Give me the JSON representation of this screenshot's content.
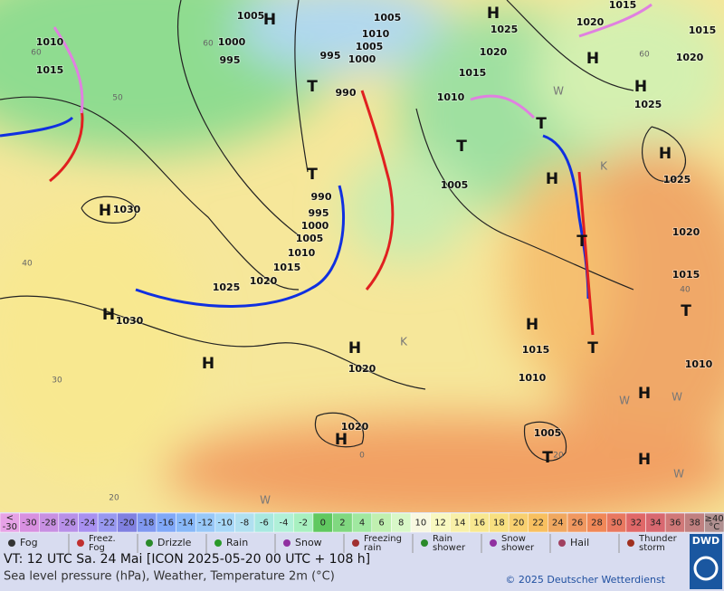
{
  "map": {
    "pressure_labels": [
      "1005",
      "1005",
      "1010",
      "1000",
      "995",
      "1010",
      "1005",
      "995",
      "1000",
      "990",
      "1015",
      "1025",
      "1020",
      "1015",
      "1010",
      "1020",
      "1015",
      "1015",
      "1020",
      "1025",
      "1025",
      "1005",
      "990",
      "995",
      "1000",
      "1005",
      "1010",
      "1015",
      "1020",
      "1025",
      "1030",
      "1030",
      "1020",
      "1015",
      "1010",
      "1020",
      "1005",
      "1020",
      "1015",
      "1010"
    ],
    "isotherm_labels": [
      "60",
      "60",
      "50",
      "40",
      "30",
      "20",
      "40",
      "0",
      "20",
      "60"
    ],
    "centers": [
      "H",
      "H",
      "T",
      "T",
      "H",
      "H",
      "H",
      "H",
      "H",
      "H",
      "T",
      "T",
      "H",
      "T",
      "T",
      "H",
      "H",
      "H",
      "H",
      "T",
      "T",
      "H"
    ],
    "airmass_labels": [
      "W",
      "K",
      "K",
      "W",
      "W",
      "W",
      "W"
    ]
  },
  "scale": {
    "unit": "°C",
    "cells": [
      {
        "label": "-30",
        "prefix": "<",
        "color": "#e6a2e6"
      },
      {
        "label": "-30",
        "color": "#d890e0"
      },
      {
        "label": "-28",
        "color": "#c890e2"
      },
      {
        "label": "-26",
        "color": "#b890e8"
      },
      {
        "label": "-24",
        "color": "#a890f0"
      },
      {
        "label": "-22",
        "color": "#9898f0"
      },
      {
        "label": "-20",
        "color": "#8080e0"
      },
      {
        "label": "-18",
        "color": "#8098f0"
      },
      {
        "label": "-16",
        "color": "#80a8f8"
      },
      {
        "label": "-14",
        "color": "#88b8f8"
      },
      {
        "label": "-12",
        "color": "#98c8f8"
      },
      {
        "label": "-10",
        "color": "#a8d8f8"
      },
      {
        "label": "-8",
        "color": "#b0e0f0"
      },
      {
        "label": "-6",
        "color": "#a8e8e0"
      },
      {
        "label": "-4",
        "color": "#b0f0d8"
      },
      {
        "label": "-2",
        "color": "#a8f0c0"
      },
      {
        "label": "0",
        "color": "#60c860"
      },
      {
        "label": "2",
        "color": "#80d880"
      },
      {
        "label": "4",
        "color": "#a0e8a0"
      },
      {
        "label": "6",
        "color": "#c0f0b0"
      },
      {
        "label": "8",
        "color": "#d8f8c8"
      },
      {
        "label": "10",
        "color": "#f8f8e0"
      },
      {
        "label": "12",
        "color": "#f8f8c0"
      },
      {
        "label": "14",
        "color": "#f8f0a8"
      },
      {
        "label": "16",
        "color": "#f8e890"
      },
      {
        "label": "18",
        "color": "#f8e080"
      },
      {
        "label": "20",
        "color": "#f8d070"
      },
      {
        "label": "22",
        "color": "#f8c060"
      },
      {
        "label": "24",
        "color": "#f0a860"
      },
      {
        "label": "26",
        "color": "#f09860"
      },
      {
        "label": "28",
        "color": "#f08858"
      },
      {
        "label": "30",
        "color": "#e87860"
      },
      {
        "label": "32",
        "color": "#e06868"
      },
      {
        "label": "34",
        "color": "#d86870"
      },
      {
        "label": "36",
        "color": "#d07878"
      },
      {
        "label": "38",
        "color": "#c08080"
      },
      {
        "label": "≥40",
        "color": "#b09090"
      }
    ]
  },
  "legend": [
    [
      "Fog"
    ],
    [
      "Freez.",
      "Fog"
    ],
    [
      "Drizzle"
    ],
    [
      "Rain"
    ],
    [
      "Snow"
    ],
    [
      "Freezing",
      "rain"
    ],
    [
      "Rain",
      "shower"
    ],
    [
      "Snow",
      "shower"
    ],
    [
      "Hail"
    ],
    [
      "Thunder",
      "storm"
    ]
  ],
  "footer": {
    "valid_time": "VT: 12 UTC Sa.  24 Mai [ICON 2025-05-20  00 UTC + 108 h]",
    "description": "Sea level pressure (hPa), Weather, Temperature 2m (°C)",
    "copyright": "© 2025 Deutscher Wetterdienst",
    "logo": "DWD"
  }
}
